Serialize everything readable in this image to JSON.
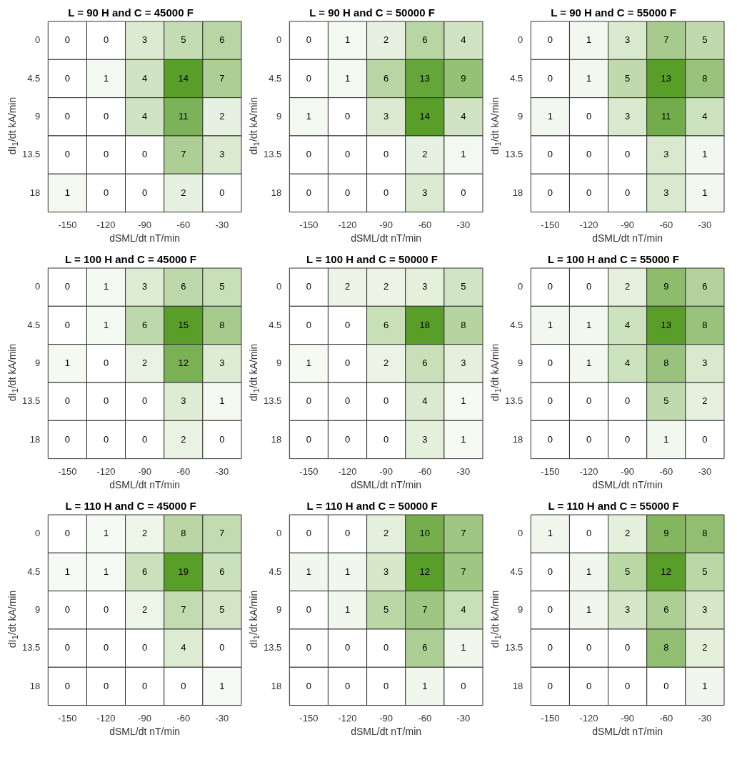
{
  "chart_data": [
    {
      "type": "heatmap",
      "title": "L = 90 H and C = 45000 F",
      "xlabel": "dSML/dt nT/min",
      "ylabel": "dI$_{1}$/dt kA/min",
      "categories": [
        "-150",
        "-120",
        "-90",
        "-60",
        "-30"
      ],
      "y_categories": [
        "0",
        "4.5",
        "9",
        "13.5",
        "18"
      ],
      "color": "#5a9e2a",
      "data_labels": true,
      "cells": [
        [
          0,
          0,
          3,
          5,
          6
        ],
        [
          0,
          1,
          4,
          14,
          7
        ],
        [
          0,
          0,
          4,
          11,
          2
        ],
        [
          0,
          0,
          0,
          7,
          3
        ],
        [
          1,
          0,
          0,
          2,
          0
        ]
      ]
    },
    {
      "type": "heatmap",
      "title": "L = 90 H and C = 50000 F",
      "xlabel": "dSML/dt nT/min",
      "ylabel": "dI$_{1}$/dt kA/min",
      "categories": [
        "-150",
        "-120",
        "-90",
        "-60",
        "-30"
      ],
      "y_categories": [
        "0",
        "4.5",
        "9",
        "13.5",
        "18"
      ],
      "color": "#5a9e2a",
      "data_labels": true,
      "cells": [
        [
          0,
          1,
          2,
          6,
          4
        ],
        [
          0,
          1,
          6,
          13,
          9
        ],
        [
          1,
          0,
          3,
          14,
          4
        ],
        [
          0,
          0,
          0,
          2,
          1
        ],
        [
          0,
          0,
          0,
          3,
          0
        ]
      ]
    },
    {
      "type": "heatmap",
      "title": "L = 90 H and C = 55000 F",
      "xlabel": "dSML/dt nT/min",
      "ylabel": "dI$_{1}$/dt kA/min",
      "categories": [
        "-150",
        "-120",
        "-90",
        "-60",
        "-30"
      ],
      "y_categories": [
        "0",
        "4.5",
        "9",
        "13.5",
        "18"
      ],
      "color": "#5a9e2a",
      "data_labels": true,
      "cells": [
        [
          0,
          1,
          3,
          7,
          5
        ],
        [
          0,
          1,
          5,
          13,
          8
        ],
        [
          1,
          0,
          3,
          11,
          4
        ],
        [
          0,
          0,
          0,
          3,
          1
        ],
        [
          0,
          0,
          0,
          3,
          1
        ]
      ]
    },
    {
      "type": "heatmap",
      "title": "L = 100 H and C = 45000 F",
      "xlabel": "dSML/dt nT/min",
      "ylabel": "dI$_{1}$/dt kA/min",
      "categories": [
        "-150",
        "-120",
        "-90",
        "-60",
        "-30"
      ],
      "y_categories": [
        "0",
        "4.5",
        "9",
        "13.5",
        "18"
      ],
      "color": "#5a9e2a",
      "data_labels": true,
      "cells": [
        [
          0,
          1,
          3,
          6,
          5
        ],
        [
          0,
          1,
          6,
          15,
          8
        ],
        [
          1,
          0,
          2,
          12,
          3
        ],
        [
          0,
          0,
          0,
          3,
          1
        ],
        [
          0,
          0,
          0,
          2,
          0
        ]
      ]
    },
    {
      "type": "heatmap",
      "title": "L = 100 H and C = 50000 F",
      "xlabel": "dSML/dt nT/min",
      "ylabel": "dI$_{1}$/dt kA/min",
      "categories": [
        "-150",
        "-120",
        "-90",
        "-60",
        "-30"
      ],
      "y_categories": [
        "0",
        "4.5",
        "9",
        "13.5",
        "18"
      ],
      "color": "#5a9e2a",
      "data_labels": true,
      "cells": [
        [
          0,
          2,
          2,
          3,
          5
        ],
        [
          0,
          0,
          6,
          18,
          8
        ],
        [
          1,
          0,
          2,
          6,
          3
        ],
        [
          0,
          0,
          0,
          4,
          1
        ],
        [
          0,
          0,
          0,
          3,
          1
        ]
      ]
    },
    {
      "type": "heatmap",
      "title": "L = 100 H and C = 55000 F",
      "xlabel": "dSML/dt nT/min",
      "ylabel": "dI$_{1}$/dt kA/min",
      "categories": [
        "-150",
        "-120",
        "-90",
        "-60",
        "-30"
      ],
      "y_categories": [
        "0",
        "4.5",
        "9",
        "13.5",
        "18"
      ],
      "color": "#5a9e2a",
      "data_labels": true,
      "cells": [
        [
          0,
          0,
          2,
          9,
          6
        ],
        [
          1,
          1,
          4,
          13,
          8
        ],
        [
          0,
          1,
          4,
          8,
          3
        ],
        [
          0,
          0,
          0,
          5,
          2
        ],
        [
          0,
          0,
          0,
          1,
          0
        ]
      ]
    },
    {
      "type": "heatmap",
      "title": "L = 110 H and C = 45000 F",
      "xlabel": "dSML/dt nT/min",
      "ylabel": "dI$_{1}$/dt kA/min",
      "categories": [
        "-150",
        "-120",
        "-90",
        "-60",
        "-30"
      ],
      "y_categories": [
        "0",
        "4.5",
        "9",
        "13.5",
        "18"
      ],
      "color": "#5a9e2a",
      "data_labels": true,
      "cells": [
        [
          0,
          1,
          2,
          8,
          7
        ],
        [
          1,
          1,
          6,
          19,
          6
        ],
        [
          0,
          0,
          2,
          7,
          5
        ],
        [
          0,
          0,
          0,
          4,
          0
        ],
        [
          0,
          0,
          0,
          0,
          1
        ]
      ]
    },
    {
      "type": "heatmap",
      "title": "L = 110 H and C = 50000 F",
      "xlabel": "dSML/dt nT/min",
      "ylabel": "dI$_{1}$/dt kA/min",
      "categories": [
        "-150",
        "-120",
        "-90",
        "-60",
        "-30"
      ],
      "y_categories": [
        "0",
        "4.5",
        "9",
        "13.5",
        "18"
      ],
      "color": "#5a9e2a",
      "data_labels": true,
      "cells": [
        [
          0,
          0,
          2,
          10,
          7
        ],
        [
          1,
          1,
          3,
          12,
          7
        ],
        [
          0,
          1,
          5,
          7,
          4
        ],
        [
          0,
          0,
          0,
          6,
          1
        ],
        [
          0,
          0,
          0,
          1,
          0
        ]
      ]
    },
    {
      "type": "heatmap",
      "title": "L = 110 H and C = 55000 F",
      "xlabel": "dSML/dt nT/min",
      "ylabel": "dI$_{1}$/dt kA/min",
      "categories": [
        "-150",
        "-120",
        "-90",
        "-60",
        "-30"
      ],
      "y_categories": [
        "0",
        "4.5",
        "9",
        "13.5",
        "18"
      ],
      "color": "#5a9e2a",
      "data_labels": true,
      "cells": [
        [
          1,
          0,
          2,
          9,
          8
        ],
        [
          0,
          1,
          5,
          12,
          5
        ],
        [
          0,
          1,
          3,
          6,
          3
        ],
        [
          0,
          0,
          0,
          8,
          2
        ],
        [
          0,
          0,
          0,
          0,
          1
        ]
      ]
    }
  ]
}
